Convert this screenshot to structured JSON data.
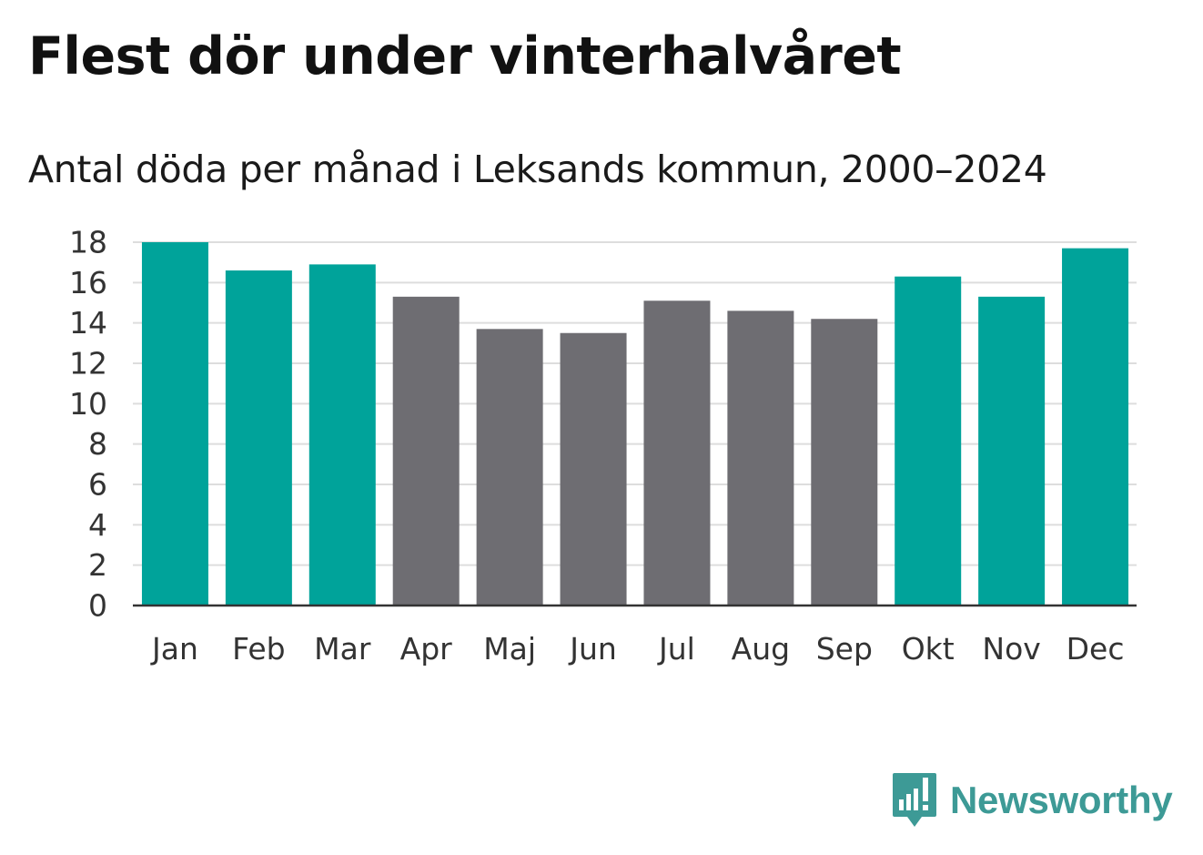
{
  "title": "Flest dör under vinterhalvåret",
  "subtitle": "Antal döda per månad i Leksands kommun, 2000–2024",
  "brand": {
    "name": "Newsworthy",
    "color": "#3d9a96"
  },
  "colors": {
    "winter": "#00a39a",
    "summer": "#6e6d72",
    "grid": "#dddddd",
    "axis": "#333333"
  },
  "chart_data": {
    "type": "bar",
    "title": "Flest dör under vinterhalvåret",
    "subtitle": "Antal döda per månad i Leksands kommun, 2000–2024",
    "xlabel": "",
    "ylabel": "",
    "ylim": [
      0,
      18
    ],
    "yticks": [
      0,
      2,
      4,
      6,
      8,
      10,
      12,
      14,
      16,
      18
    ],
    "grid": true,
    "categories": [
      "Jan",
      "Feb",
      "Mar",
      "Apr",
      "Maj",
      "Jun",
      "Jul",
      "Aug",
      "Sep",
      "Okt",
      "Nov",
      "Dec"
    ],
    "values": [
      18.0,
      16.6,
      16.9,
      15.3,
      13.7,
      13.5,
      15.1,
      14.6,
      14.2,
      16.3,
      15.3,
      17.7
    ],
    "groups": [
      "winter",
      "winter",
      "winter",
      "summer",
      "summer",
      "summer",
      "summer",
      "summer",
      "summer",
      "winter",
      "winter",
      "winter"
    ]
  }
}
